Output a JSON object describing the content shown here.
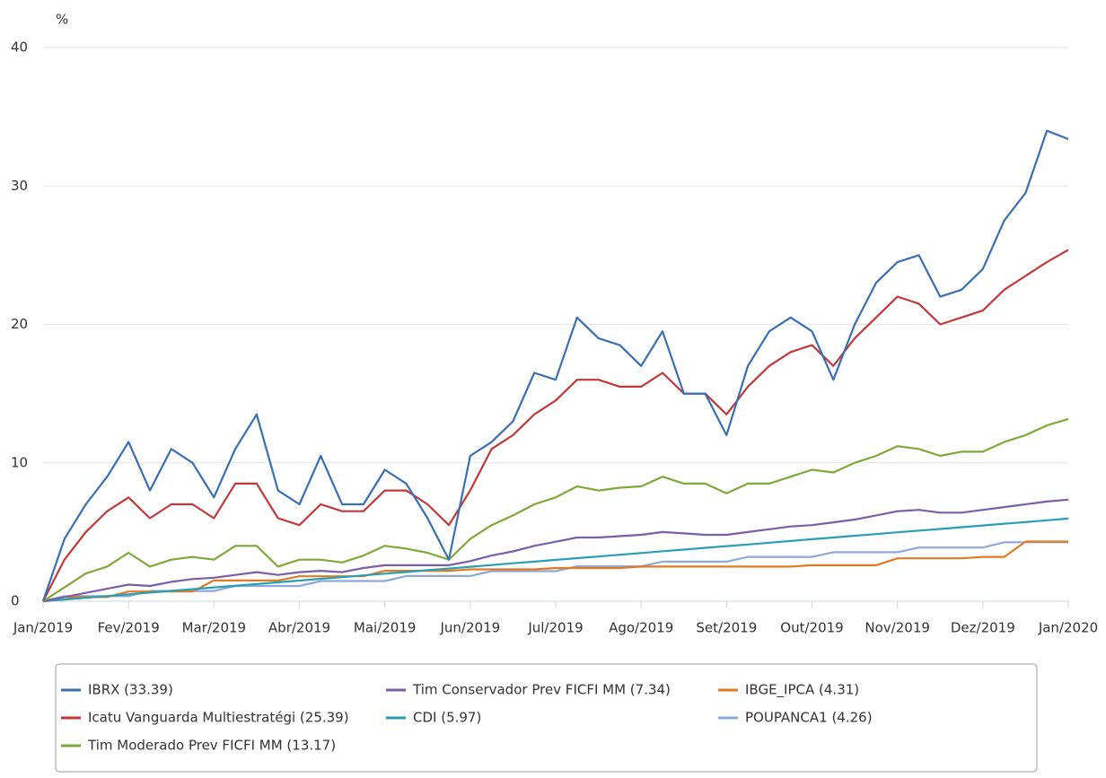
{
  "chart_data": {
    "type": "line",
    "y_label": "%",
    "categories": [
      "Jan/2019",
      null,
      null,
      null,
      "Fev/2019",
      null,
      null,
      null,
      "Mar/2019",
      null,
      null,
      null,
      "Abr/2019",
      null,
      null,
      null,
      "Mai/2019",
      null,
      null,
      null,
      "Jun/2019",
      null,
      null,
      null,
      "Jul/2019",
      null,
      null,
      null,
      "Ago/2019",
      null,
      null,
      null,
      "Set/2019",
      null,
      null,
      null,
      "Out/2019",
      null,
      null,
      null,
      "Nov/2019",
      null,
      null,
      null,
      "Dez/2019",
      null,
      null,
      null,
      "Jan/2020"
    ],
    "ylim": [
      0,
      40
    ],
    "yticks": [
      0,
      10,
      20,
      30,
      40
    ],
    "grid": true,
    "series": [
      {
        "name": "IBRX (33.39)",
        "color": "#3a6fb0",
        "values": [
          0,
          4.5,
          7,
          9,
          11.5,
          8,
          11,
          10,
          7.5,
          11,
          13.5,
          8,
          7,
          10.5,
          7,
          7,
          9.5,
          8.5,
          6,
          3,
          10.5,
          11.5,
          13,
          16.5,
          16,
          20.5,
          19,
          18.5,
          17,
          19.5,
          15,
          15,
          12,
          17,
          19.5,
          20.5,
          19.5,
          16,
          20,
          23,
          24.5,
          25,
          22,
          22.5,
          24,
          27.5,
          29.5,
          34,
          33.39
        ]
      },
      {
        "name": "Icatu Vanguarda Multiestratégi (25.39)",
        "color": "#c0393b",
        "values": [
          0,
          3,
          5,
          6.5,
          7.5,
          6,
          7,
          7,
          6,
          8.5,
          8.5,
          6,
          5.5,
          7,
          6.5,
          6.5,
          8,
          8,
          7,
          5.5,
          8,
          11,
          12,
          13.5,
          14.5,
          16,
          16,
          15.5,
          15.5,
          16.5,
          15,
          15,
          13.5,
          15.5,
          17,
          18,
          18.5,
          17,
          19,
          20.5,
          22,
          21.5,
          20,
          20.5,
          21,
          22.5,
          23.5,
          24.5,
          25.39
        ]
      },
      {
        "name": "Tim Moderado Prev FICFI MM (13.17)",
        "color": "#7faa3a",
        "values": [
          0,
          1,
          2,
          2.5,
          3.5,
          2.5,
          3,
          3.2,
          3,
          4,
          4,
          2.5,
          3,
          3,
          2.8,
          3.3,
          4,
          3.8,
          3.5,
          3,
          4.5,
          5.5,
          6.2,
          7,
          7.5,
          8.3,
          8,
          8.2,
          8.3,
          9,
          8.5,
          8.5,
          7.8,
          8.5,
          8.5,
          9,
          9.5,
          9.3,
          10,
          10.5,
          11.2,
          11,
          10.5,
          10.8,
          10.8,
          11.5,
          12,
          12.7,
          13.17
        ]
      },
      {
        "name": "Tim Conservador Prev FICFI MM (7.34)",
        "color": "#7b5ea7",
        "values": [
          0,
          0.3,
          0.6,
          0.9,
          1.2,
          1.1,
          1.4,
          1.6,
          1.7,
          1.9,
          2.1,
          1.9,
          2.1,
          2.2,
          2.1,
          2.4,
          2.6,
          2.6,
          2.6,
          2.6,
          2.9,
          3.3,
          3.6,
          4,
          4.3,
          4.6,
          4.6,
          4.7,
          4.8,
          5,
          4.9,
          4.8,
          4.8,
          5,
          5.2,
          5.4,
          5.5,
          5.7,
          5.9,
          6.2,
          6.5,
          6.6,
          6.4,
          6.4,
          6.6,
          6.8,
          7,
          7.2,
          7.34
        ]
      },
      {
        "name": "CDI (5.97)",
        "color": "#2a9fb3",
        "values": [
          0,
          0.12,
          0.25,
          0.37,
          0.5,
          0.62,
          0.75,
          0.87,
          1,
          1.12,
          1.24,
          1.37,
          1.49,
          1.62,
          1.74,
          1.87,
          1.99,
          2.11,
          2.24,
          2.36,
          2.49,
          2.61,
          2.74,
          2.86,
          2.99,
          3.11,
          3.23,
          3.36,
          3.48,
          3.61,
          3.73,
          3.86,
          3.98,
          4.1,
          4.23,
          4.35,
          4.48,
          4.6,
          4.73,
          4.85,
          4.98,
          5.1,
          5.22,
          5.35,
          5.47,
          5.6,
          5.72,
          5.85,
          5.97
        ]
      },
      {
        "name": "IBGE_IPCA (4.31)",
        "color": "#e07b24",
        "values": [
          0,
          0.3,
          0.3,
          0.3,
          0.7,
          0.7,
          0.7,
          0.7,
          1.5,
          1.5,
          1.5,
          1.5,
          1.8,
          1.8,
          1.8,
          1.8,
          2.2,
          2.2,
          2.2,
          2.2,
          2.3,
          2.3,
          2.3,
          2.3,
          2.4,
          2.4,
          2.4,
          2.4,
          2.5,
          2.5,
          2.5,
          2.5,
          2.5,
          2.5,
          2.5,
          2.5,
          2.6,
          2.6,
          2.6,
          2.6,
          3.1,
          3.1,
          3.1,
          3.1,
          3.2,
          3.2,
          4.31,
          4.31,
          4.31
        ]
      },
      {
        "name": "POUPANCA1 (4.26)",
        "color": "#8fa8d8",
        "values": [
          0,
          0.37,
          0.37,
          0.37,
          0.37,
          0.74,
          0.74,
          0.74,
          0.74,
          1.1,
          1.1,
          1.1,
          1.1,
          1.46,
          1.46,
          1.46,
          1.46,
          1.82,
          1.82,
          1.82,
          1.82,
          2.17,
          2.17,
          2.17,
          2.17,
          2.52,
          2.52,
          2.52,
          2.52,
          2.86,
          2.86,
          2.86,
          2.86,
          3.2,
          3.2,
          3.2,
          3.2,
          3.54,
          3.54,
          3.54,
          3.54,
          3.88,
          3.88,
          3.88,
          3.88,
          4.26,
          4.26,
          4.26,
          4.26
        ]
      }
    ]
  }
}
